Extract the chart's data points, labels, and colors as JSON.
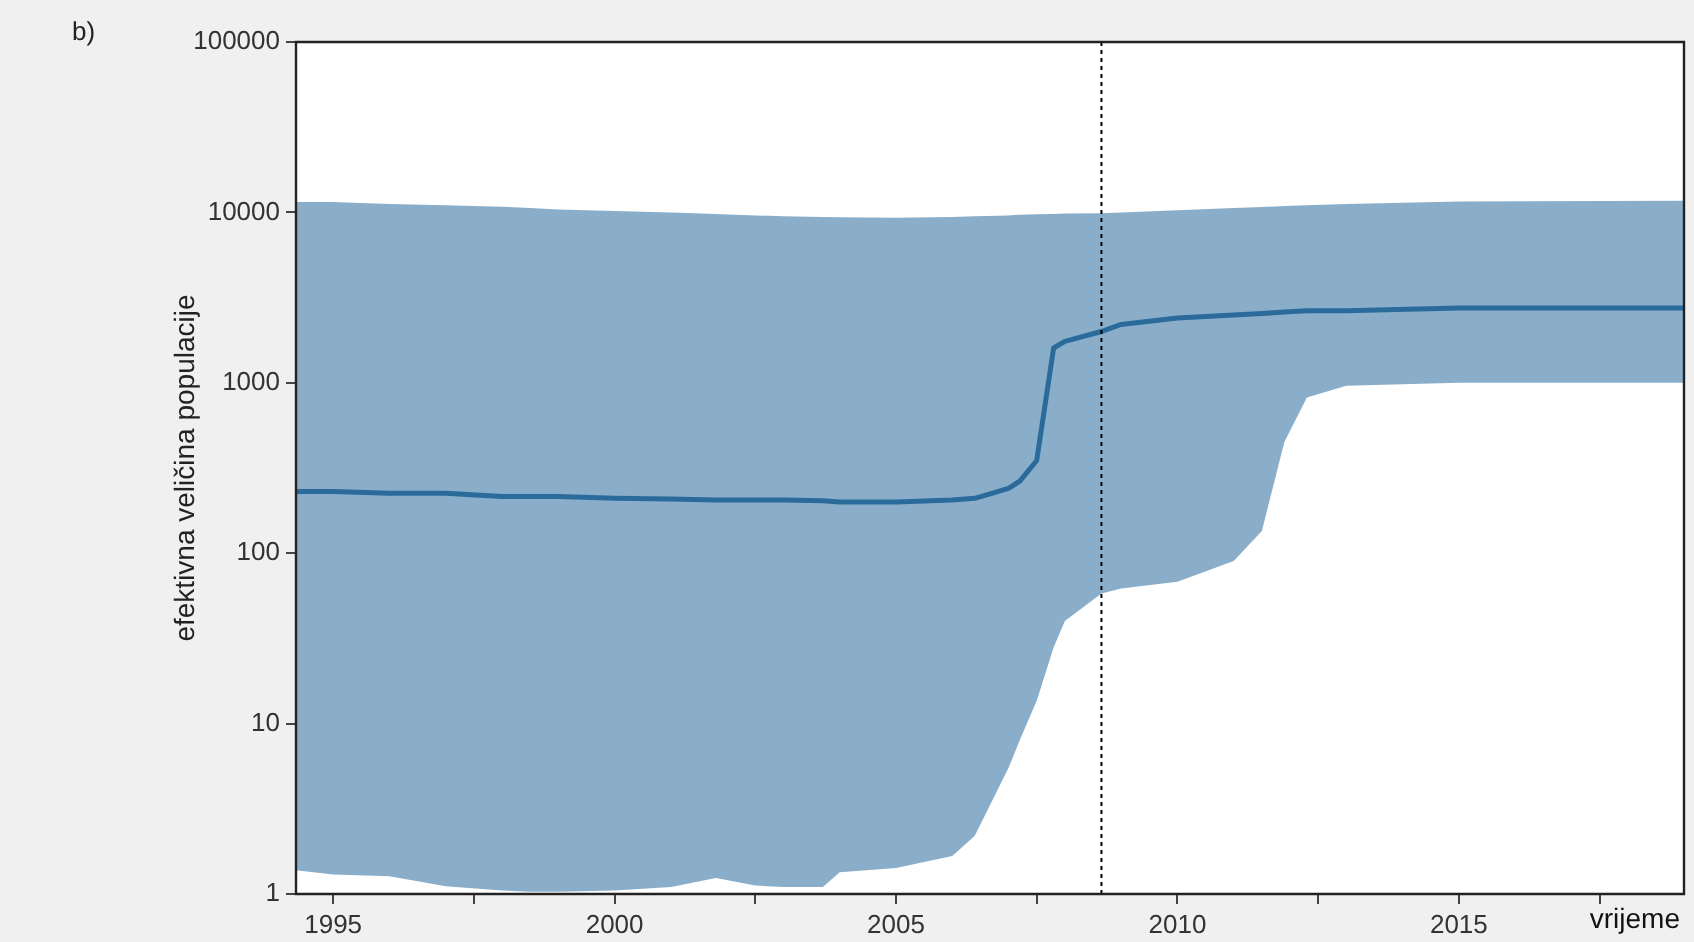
{
  "chart_data": {
    "type": "line",
    "xlabel": "vrijeme",
    "ylabel": "efektivna veličina populacije",
    "annotations": [
      "b)"
    ],
    "x": [
      1994.34,
      1995,
      1996,
      1997,
      1998,
      1998.5,
      1999,
      2000,
      2001,
      2001.8,
      2002.5,
      2003,
      2003.7,
      2004,
      2005,
      2006,
      2006.4,
      2007,
      2007.2,
      2007.5,
      2007.8,
      2008,
      2008.65,
      2009,
      2010,
      2011,
      2011.5,
      2011.9,
      2012.3,
      2013,
      2015,
      2019
    ],
    "series": [
      {
        "color": "#2a6b9c",
        "values": [
          230,
          230,
          225,
          225,
          215,
          215,
          215,
          210,
          208,
          205,
          205,
          205,
          203,
          200,
          200,
          205,
          210,
          240,
          265,
          350,
          1600,
          1750,
          2000,
          2200,
          2400,
          2500,
          2550,
          2600,
          2650,
          2650,
          2750,
          2750
        ],
        "lower": [
          1.38,
          1.3,
          1.27,
          1.11,
          1.05,
          1.03,
          1.03,
          1.05,
          1.1,
          1.24,
          1.12,
          1.1,
          1.1,
          1.34,
          1.42,
          1.67,
          2.2,
          5.5,
          8,
          13.6,
          28,
          40,
          58,
          62,
          68,
          90,
          135,
          450,
          820,
          960,
          1000,
          1000
        ],
        "upper": [
          11500,
          11500,
          11200,
          11000,
          10800,
          10600,
          10400,
          10200,
          10000,
          9800,
          9600,
          9500,
          9400,
          9350,
          9300,
          9400,
          9500,
          9600,
          9700,
          9750,
          9800,
          9850,
          9900,
          10000,
          10300,
          10600,
          10750,
          10900,
          11000,
          11200,
          11600,
          11700
        ]
      }
    ],
    "xlim": [
      1994.34,
      2019
    ],
    "xticks": [
      1995,
      {
        "value": 1997.5,
        "label": null
      },
      2000,
      {
        "value": 2002.5,
        "label": null
      },
      2005,
      {
        "value": 2007.5,
        "label": null
      },
      2010,
      {
        "value": 2012.5,
        "label": null
      },
      2015,
      {
        "value": 2017.5,
        "label": null
      }
    ],
    "ylim": [
      1,
      100000
    ],
    "yticks": [
      1,
      10,
      100,
      1000,
      10000,
      100000
    ],
    "log": "y",
    "grid": false,
    "legend": false,
    "ref_lines": [
      {
        "axis": "x",
        "value": 2008.65,
        "color": "#000000",
        "line_style": "dotted"
      }
    ]
  }
}
